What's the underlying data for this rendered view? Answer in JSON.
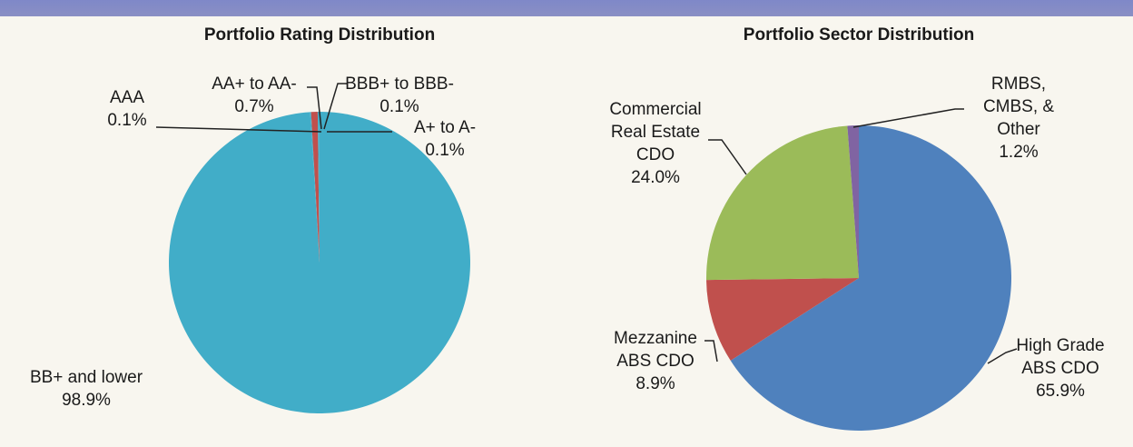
{
  "chart_data": [
    {
      "type": "pie",
      "title": "Portfolio Rating Distribution",
      "categories": [
        "BB+ and lower",
        "AAA",
        "AA+ to AA-",
        "A+ to A-",
        "BBB+ to BBB-"
      ],
      "values": [
        98.9,
        0.1,
        0.7,
        0.1,
        0.1
      ],
      "value_labels": [
        "98.9%",
        "0.1%",
        "0.7%",
        "0.1%",
        "0.1%"
      ],
      "colors": [
        "#41adc8",
        "#41adc8",
        "#c0504d",
        "#41adc8",
        "#41adc8"
      ]
    },
    {
      "type": "pie",
      "title": "Portfolio Sector Distribution",
      "categories": [
        "High Grade\nABS CDO",
        "Mezzanine\nABS CDO",
        "Commercial\nReal Estate\nCDO",
        "RMBS,\nCMBS, &\nOther"
      ],
      "values": [
        65.9,
        8.9,
        24.0,
        1.2
      ],
      "value_labels": [
        "65.9%",
        "8.9%",
        "24.0%",
        "1.2%"
      ],
      "colors": [
        "#4f81bd",
        "#c0504d",
        "#9bbb59",
        "#8064a2"
      ]
    }
  ]
}
